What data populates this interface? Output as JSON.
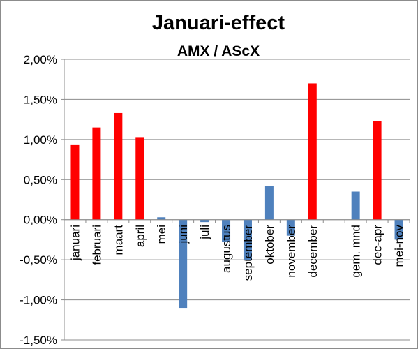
{
  "chart_data": {
    "type": "bar",
    "title": "Januari-effect",
    "subtitle": "AMX / AScX",
    "xlabel": "",
    "ylabel": "",
    "ylim": [
      -1.5,
      2.0
    ],
    "yticks": [
      2.0,
      1.5,
      1.0,
      0.5,
      0.0,
      -0.5,
      -1.0,
      -1.5
    ],
    "ytick_labels": [
      "2,00%",
      "1,50%",
      "1,00%",
      "0,50%",
      "0,00%",
      "-0,50%",
      "-1,00%",
      "-1,50%"
    ],
    "grid": true,
    "legend": "none",
    "categories": [
      "januari",
      "februari",
      "maart",
      "april",
      "mei",
      "juni",
      "juli",
      "augustus",
      "september",
      "oktober",
      "november",
      "december",
      "",
      "gem. mnd",
      "dec-apr",
      "mei-nov"
    ],
    "values": [
      0.93,
      1.15,
      1.33,
      1.03,
      0.03,
      -1.1,
      -0.03,
      -0.28,
      -0.5,
      0.42,
      -0.2,
      1.7,
      null,
      0.35,
      1.23,
      -0.25
    ],
    "colors": [
      "red",
      "red",
      "red",
      "red",
      "blue",
      "blue",
      "blue",
      "blue",
      "blue",
      "blue",
      "blue",
      "red",
      null,
      "blue",
      "red",
      "blue"
    ],
    "palette": {
      "red": "#ff0000",
      "blue": "#4f81bd",
      "grid": "#8c8c8c",
      "axis": "#8c8c8c"
    }
  }
}
